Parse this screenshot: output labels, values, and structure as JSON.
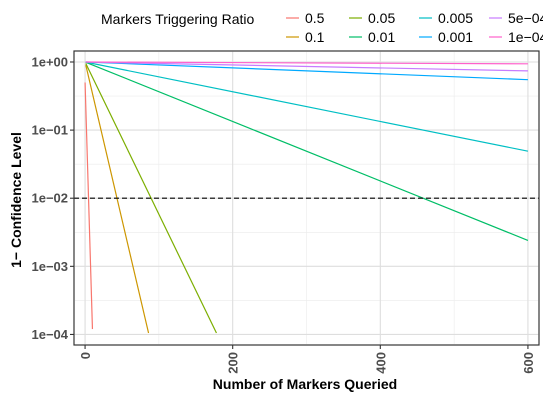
{
  "chart_data": {
    "type": "line",
    "title": "",
    "xlabel": "Number of Markers Queried",
    "ylabel": "1− Confidence Level",
    "xlim": [
      -15,
      615
    ],
    "ylim": [
      7e-05,
      1.45
    ],
    "log_y": true,
    "x_ticks": [
      0,
      200,
      400,
      600
    ],
    "x_tick_labels": [
      "0",
      "200",
      "400",
      "600"
    ],
    "y_ticks": [
      1,
      0.1,
      0.01,
      0.001,
      0.0001
    ],
    "y_tick_labels": [
      "1e+00",
      "1e−01",
      "1e−02",
      "1e−03",
      "1e−04"
    ],
    "grid": true,
    "reference_line": {
      "y": 0.01,
      "style": "dashed"
    },
    "legend": {
      "title": "Markers Triggering Ratio",
      "placement": "top",
      "entries": [
        "0.5",
        "0.1",
        "0.05",
        "0.01",
        "0.005",
        "0.001",
        "5e−04",
        "1e−04"
      ]
    },
    "series": [
      {
        "name": "0.5",
        "color": "#F8766D",
        "x": [
          0,
          10
        ],
        "y": [
          0.5,
          0.00012
        ]
      },
      {
        "name": "0.1",
        "color": "#CD9600",
        "x": [
          1,
          86
        ],
        "y": [
          0.9,
          0.000105
        ]
      },
      {
        "name": "0.05",
        "color": "#7CAE00",
        "x": [
          1,
          178
        ],
        "y": [
          0.95,
          0.000105
        ]
      },
      {
        "name": "0.01",
        "color": "#00BE67",
        "x": [
          1,
          600
        ],
        "y": [
          0.99,
          0.0024
        ]
      },
      {
        "name": "0.005",
        "color": "#00BFC4",
        "x": [
          1,
          600
        ],
        "y": [
          0.995,
          0.049
        ]
      },
      {
        "name": "0.001",
        "color": "#00A9FF",
        "x": [
          1,
          600
        ],
        "y": [
          0.999,
          0.55
        ]
      },
      {
        "name": "5e−04",
        "color": "#C77CFF",
        "x": [
          1,
          600
        ],
        "y": [
          0.9995,
          0.74
        ]
      },
      {
        "name": "1e−04",
        "color": "#FF61CC",
        "x": [
          1,
          600
        ],
        "y": [
          0.9999,
          0.94
        ]
      }
    ]
  }
}
